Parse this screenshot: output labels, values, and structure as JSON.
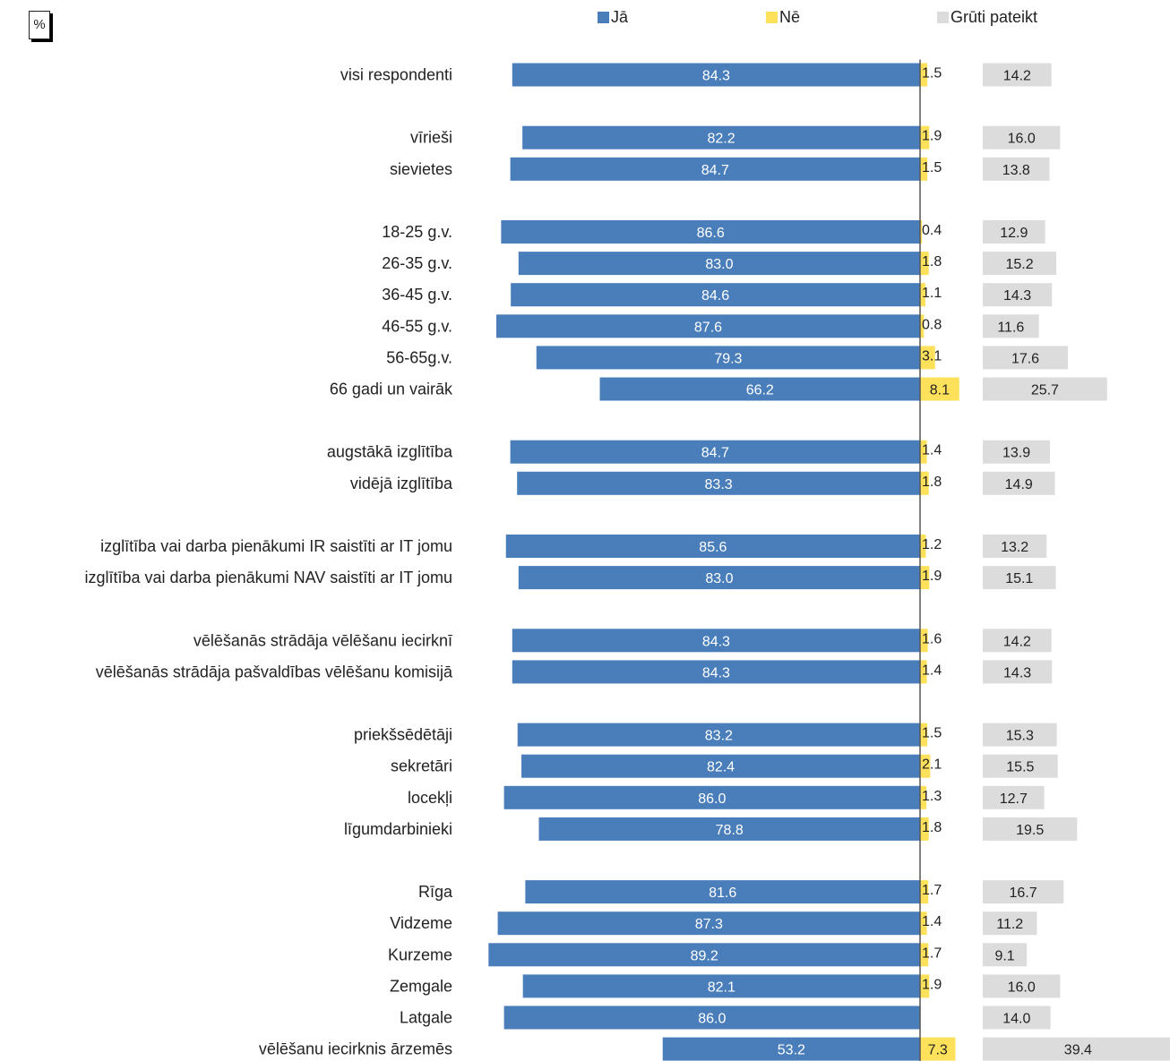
{
  "unit_label": "%",
  "colors": {
    "yes": "#4a7ebb",
    "no": "#fde15b",
    "hard": "#dcdcdc",
    "axis": "#555555",
    "text": "#222222"
  },
  "chart_data": {
    "type": "bar",
    "orientation": "horizontal",
    "stacked_diverging": true,
    "legend": [
      "Jā",
      "Nē",
      "Grūti pateikt"
    ],
    "legend_position": "top",
    "grid": false,
    "rows": [
      {
        "label": "visi respondenti",
        "yes": "84.3",
        "no": "1.5",
        "hard": "14.2",
        "group_gap": false
      },
      {
        "label": "vīrieši",
        "yes": "82.2",
        "no": "1.9",
        "hard": "16.0",
        "group_gap": true
      },
      {
        "label": "sievietes",
        "yes": "84.7",
        "no": "1.5",
        "hard": "13.8",
        "group_gap": false
      },
      {
        "label": "18-25 g.v.",
        "yes": "86.6",
        "no": "0.4",
        "hard": "12.9",
        "group_gap": true
      },
      {
        "label": "26-35 g.v.",
        "yes": "83.0",
        "no": "1.8",
        "hard": "15.2",
        "group_gap": false
      },
      {
        "label": "36-45 g.v.",
        "yes": "84.6",
        "no": "1.1",
        "hard": "14.3",
        "group_gap": false
      },
      {
        "label": "46-55 g.v.",
        "yes": "87.6",
        "no": "0.8",
        "hard": "11.6",
        "group_gap": false
      },
      {
        "label": "56-65g.v.",
        "yes": "79.3",
        "no": "3.1",
        "hard": "17.6",
        "group_gap": false
      },
      {
        "label": "66 gadi un vairāk",
        "yes": "66.2",
        "no": "8.1",
        "hard": "25.7",
        "group_gap": false
      },
      {
        "label": "augstākā izglītība",
        "yes": "84.7",
        "no": "1.4",
        "hard": "13.9",
        "group_gap": true
      },
      {
        "label": "vidējā izglītība",
        "yes": "83.3",
        "no": "1.8",
        "hard": "14.9",
        "group_gap": false
      },
      {
        "label": "izglītība vai darba pienākumi IR saistīti ar IT jomu",
        "yes": "85.6",
        "no": "1.2",
        "hard": "13.2",
        "group_gap": true
      },
      {
        "label": "izglītība vai darba pienākumi NAV saistīti ar IT jomu",
        "yes": "83.0",
        "no": "1.9",
        "hard": "15.1",
        "group_gap": false
      },
      {
        "label": "vēlēšanās strādāja vēlēšanu iecirknī",
        "yes": "84.3",
        "no": "1.6",
        "hard": "14.2",
        "group_gap": true
      },
      {
        "label": "vēlēšanās strādāja pašvaldības vēlēšanu komisijā",
        "yes": "84.3",
        "no": "1.4",
        "hard": "14.3",
        "group_gap": false
      },
      {
        "label": "priekšsēdētāji",
        "yes": "83.2",
        "no": "1.5",
        "hard": "15.3",
        "group_gap": true
      },
      {
        "label": "sekretāri",
        "yes": "82.4",
        "no": "2.1",
        "hard": "15.5",
        "group_gap": false
      },
      {
        "label": "locekļi",
        "yes": "86.0",
        "no": "1.3",
        "hard": "12.7",
        "group_gap": false
      },
      {
        "label": "līgumdarbinieki",
        "yes": "78.8",
        "no": "1.8",
        "hard": "19.5",
        "group_gap": false
      },
      {
        "label": "Rīga",
        "yes": "81.6",
        "no": "1.7",
        "hard": "16.7",
        "group_gap": true
      },
      {
        "label": "Vidzeme",
        "yes": "87.3",
        "no": "1.4",
        "hard": "11.2",
        "group_gap": false
      },
      {
        "label": "Kurzeme",
        "yes": "89.2",
        "no": "1.7",
        "hard": "9.1",
        "group_gap": false
      },
      {
        "label": "Zemgale",
        "yes": "82.1",
        "no": "1.9",
        "hard": "16.0",
        "group_gap": false
      },
      {
        "label": "Latgale",
        "yes": "86.0",
        "no": "",
        "hard": "14.0",
        "group_gap": false
      },
      {
        "label": "vēlēšanu iecirknis ārzemēs",
        "yes": "53.2",
        "no": "7.3",
        "hard": "39.4",
        "group_gap": false
      }
    ]
  }
}
